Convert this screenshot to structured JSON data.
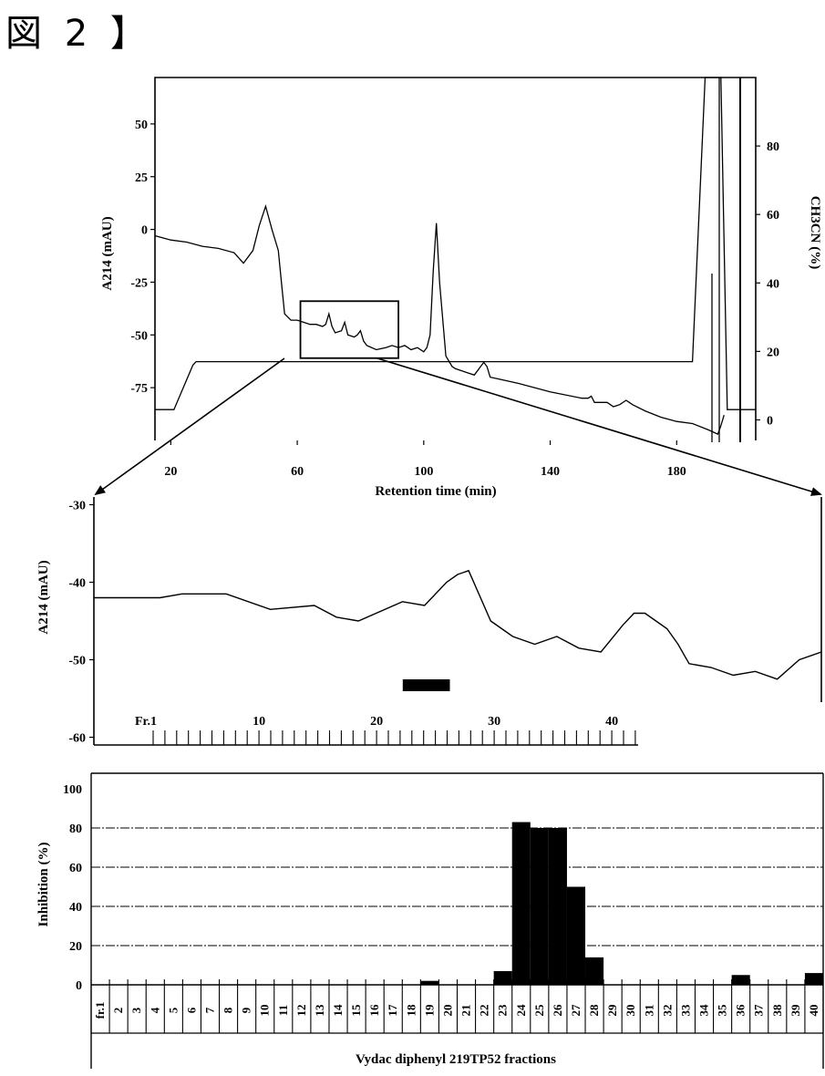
{
  "figure_label": "図 2 】",
  "chart_data": [
    {
      "type": "line",
      "xlabel": "Retention time (min)",
      "ylabel": "A214 (mAU)",
      "y2label": "CH3CN (%)",
      "xlim": [
        15,
        205
      ],
      "ylim": [
        -100,
        72
      ],
      "y2lim": [
        -6,
        100
      ],
      "x_ticks": [
        20,
        60,
        100,
        140,
        180
      ],
      "y_ticks": [
        50,
        25,
        0,
        -25,
        -50,
        -75
      ],
      "y2_ticks": [
        80,
        60,
        40,
        20,
        0
      ],
      "series": [
        {
          "x": [
            15,
            20,
            25,
            30,
            35,
            40,
            43,
            46,
            48,
            50,
            52,
            54,
            55,
            56,
            58,
            60,
            62,
            64,
            66,
            68,
            69,
            70,
            71,
            72,
            74,
            75,
            76,
            78,
            79,
            80,
            81,
            82,
            85,
            88,
            90,
            92,
            94,
            96,
            98,
            100,
            101,
            102,
            103,
            104,
            105,
            107,
            109,
            110,
            112,
            114,
            116,
            118,
            119,
            120,
            121,
            124,
            130,
            140,
            150,
            152,
            153,
            154,
            158,
            160,
            162,
            164,
            165,
            166,
            170,
            175,
            180,
            185,
            190,
            193,
            194,
            195
          ],
          "y": [
            -3,
            -5,
            -6,
            -8,
            -9,
            -11,
            -16,
            -10,
            2,
            11,
            0,
            -10,
            -25,
            -40,
            -43,
            -43,
            -44,
            -45,
            -45,
            -46,
            -45,
            -40,
            -46,
            -49,
            -48,
            -44,
            -50,
            -51,
            -50,
            -48,
            -53,
            -55,
            -57,
            -56,
            -55,
            -56,
            -55,
            -57,
            -56,
            -58,
            -56,
            -50,
            -20,
            3,
            -25,
            -60,
            -65,
            -66,
            -67,
            -68,
            -69,
            -65,
            -63,
            -65,
            -70,
            -71,
            -73,
            -77,
            -80,
            -80,
            -79,
            -82,
            -82,
            -84,
            -83,
            -81,
            -82,
            -83,
            -86,
            -89,
            -91,
            -92,
            -95,
            -97,
            -93,
            -88
          ]
        },
        {
          "x": [
            15,
            21,
            27,
            28,
            30,
            185,
            189,
            194,
            196,
            205
          ],
          "y2": [
            3,
            3,
            16,
            17,
            17,
            17,
            100,
            100,
            3,
            3
          ]
        }
      ],
      "annotations": [
        {
          "type": "box",
          "x": [
            61,
            92
          ],
          "y": [
            -34,
            -61
          ]
        }
      ]
    },
    {
      "type": "line",
      "ylabel": "A214 (mAU)",
      "xlim": [
        60,
        93
      ],
      "ylim": [
        -61,
        -29
      ],
      "y_ticks": [
        -30,
        -40,
        -50,
        -60
      ],
      "series": [
        {
          "x": [
            60,
            61,
            63,
            64,
            66,
            68,
            70,
            71,
            72,
            74,
            75,
            76,
            76.5,
            77,
            78,
            78.5,
            79,
            80,
            81,
            82,
            83,
            84,
            84.5,
            85,
            86,
            86.5,
            87,
            88,
            89,
            90,
            91,
            92,
            93
          ],
          "y": [
            -42,
            -42,
            -42,
            -41.5,
            -41.5,
            -43.5,
            -43,
            -44.5,
            -45,
            -42.5,
            -43,
            -40,
            -39,
            -38.5,
            -45,
            -46,
            -47,
            -48,
            -47,
            -48.5,
            -49,
            -45.5,
            -44,
            -44,
            -46,
            -48,
            -50.5,
            -51,
            -52,
            -51.5,
            -52.5,
            -50,
            -49
          ]
        }
      ],
      "fraction_axis": {
        "ticks": [
          "Fr.1",
          "10",
          "20",
          "30",
          "40"
        ],
        "count": 42
      },
      "collected_fraction_bar": {
        "from_fraction": 23,
        "to_fraction": 26
      }
    },
    {
      "type": "bar",
      "xlabel": "Vydac diphenyl 219TP52 fractions",
      "ylabel": "Inhibition (%)",
      "ylim": [
        0,
        100
      ],
      "y_ticks": [
        100,
        80,
        60,
        40,
        20,
        0
      ],
      "grid": true,
      "categories": [
        "fr.1",
        "2",
        "3",
        "4",
        "5",
        "6",
        "7",
        "8",
        "9",
        "10",
        "11",
        "12",
        "13",
        "14",
        "15",
        "16",
        "17",
        "18",
        "19",
        "20",
        "21",
        "22",
        "23",
        "24",
        "25",
        "26",
        "27",
        "28",
        "29",
        "30",
        "31",
        "32",
        "33",
        "34",
        "35",
        "36",
        "37",
        "38",
        "39",
        "40"
      ],
      "values": [
        0,
        0,
        0,
        0,
        0,
        0,
        0,
        0,
        0,
        0,
        0,
        0,
        0,
        0,
        0,
        0,
        0,
        0,
        2,
        0,
        0,
        0,
        7,
        83,
        80,
        80,
        50,
        14,
        0,
        0,
        0,
        0,
        0,
        0,
        0,
        5,
        0,
        0,
        0,
        6
      ]
    }
  ]
}
